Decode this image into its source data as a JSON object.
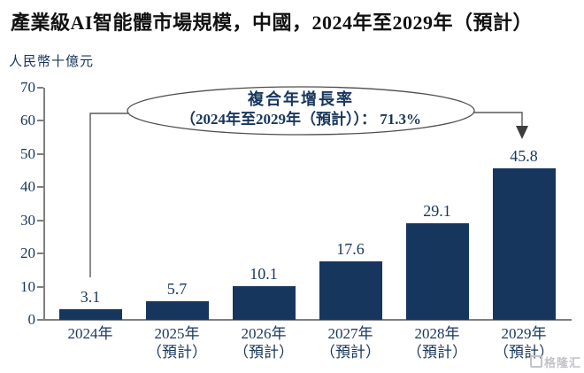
{
  "chart_data": {
    "type": "bar",
    "title": "產業級AI智能體市場規模，中國，2024年至2029年（預計）",
    "ylabel": "人民幣十億元",
    "xlabel": "",
    "ylim": [
      0,
      70
    ],
    "ytick_step": 10,
    "grid": false,
    "categories": [
      "2024年",
      "2025年（預計）",
      "2026年（預計）",
      "2027年（預計）",
      "2028年（預計）",
      "2029年（預計）"
    ],
    "category_lines": [
      [
        "2024年"
      ],
      [
        "2025年",
        "（預計）"
      ],
      [
        "2026年",
        "（預計）"
      ],
      [
        "2027年",
        "（預計）"
      ],
      [
        "2028年",
        "（預計）"
      ],
      [
        "2029年",
        "（預計）"
      ]
    ],
    "values": [
      3.1,
      5.7,
      10.1,
      17.6,
      29.1,
      45.8
    ],
    "value_labels": [
      "3.1",
      "5.7",
      "10.1",
      "17.6",
      "29.1",
      "45.8"
    ],
    "annotation": {
      "line1": "複合年增長率",
      "line2": "（2024年至2029年（預計））： 71.3%"
    }
  },
  "watermark": {
    "brand": "格隆汇"
  },
  "colors": {
    "bar": "#17365D",
    "text": "#17365D",
    "title": "#111111",
    "axis": "#7f7f7f",
    "connector": "#595959",
    "arrowhead": "#3d3d3d",
    "ellipse_stroke": "#4d4d4d"
  }
}
